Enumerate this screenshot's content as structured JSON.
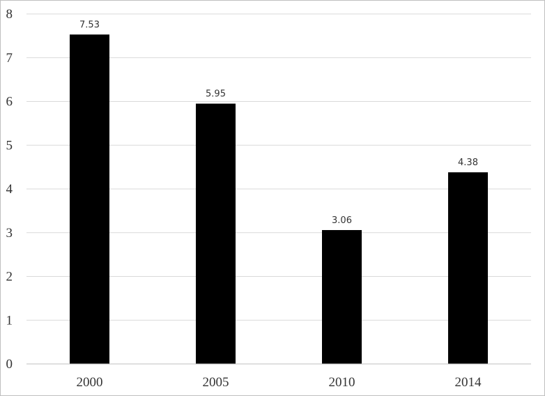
{
  "chart_data": {
    "type": "bar",
    "categories": [
      "2000",
      "2005",
      "2010",
      "2014"
    ],
    "values": [
      7.53,
      5.95,
      3.06,
      4.38
    ],
    "data_labels": [
      "7.53",
      "5.95",
      "3.06",
      "4.38"
    ],
    "title": "",
    "xlabel": "",
    "ylabel": "",
    "ylim": [
      0,
      8
    ],
    "yticks": [
      0,
      1,
      2,
      3,
      4,
      5,
      6,
      7,
      8
    ],
    "grid": true,
    "legend": "none",
    "colors": {
      "bar": "#000000",
      "grid": "#d9d9d9",
      "axis": "#bfbfbf",
      "text": "#333333"
    }
  }
}
